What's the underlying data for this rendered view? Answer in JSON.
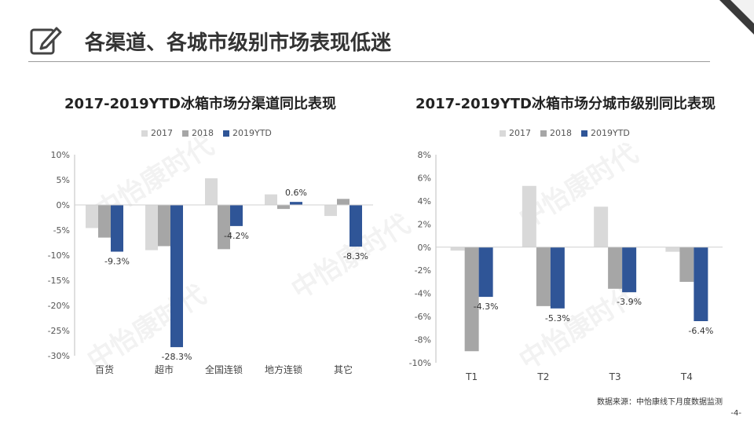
{
  "slide": {
    "title": "各渠道、各城市级别市场表现低迷",
    "source": "数据来源：中怡康线下月度数据监测",
    "page": "-4-",
    "watermark": "中怡康时代"
  },
  "colors": {
    "2017": "#d9d9d9",
    "2018": "#a6a6a6",
    "2019YTD": "#2f5597"
  },
  "chart_data": [
    {
      "type": "bar",
      "title": "2017-2019YTD冰箱市场分渠道同比表现",
      "categories": [
        "百货",
        "超市",
        "全国连锁",
        "地方连锁",
        "其它"
      ],
      "series": [
        {
          "name": "2017",
          "values": [
            -4.6,
            -9.0,
            5.3,
            2.1,
            -2.2
          ]
        },
        {
          "name": "2018",
          "values": [
            -6.5,
            -8.2,
            -8.8,
            -0.8,
            1.2
          ]
        },
        {
          "name": "2019YTD",
          "values": [
            -9.3,
            -28.3,
            -4.2,
            0.6,
            -8.3
          ]
        }
      ],
      "data_labels": [
        "-9.3%",
        "-28.3%",
        "-4.2%",
        "0.6%",
        "-8.3%"
      ],
      "yticks": [
        "10%",
        "5%",
        "0%",
        "-5%",
        "-10%",
        "-15%",
        "-20%",
        "-25%",
        "-30%"
      ],
      "ylim": [
        -30,
        10
      ],
      "legend": "top"
    },
    {
      "type": "bar",
      "title": "2017-2019YTD冰箱市场分城市级别同比表现",
      "categories": [
        "T1",
        "T2",
        "T3",
        "T4"
      ],
      "series": [
        {
          "name": "2017",
          "values": [
            -0.3,
            5.3,
            3.5,
            -0.4
          ]
        },
        {
          "name": "2018",
          "values": [
            -9.0,
            -5.1,
            -3.6,
            -3.0
          ]
        },
        {
          "name": "2019YTD",
          "values": [
            -4.3,
            -5.3,
            -3.9,
            -6.4
          ]
        }
      ],
      "data_labels": [
        "-4.3%",
        "-5.3%",
        "-3.9%",
        "-6.4%"
      ],
      "yticks": [
        "8%",
        "6%",
        "4%",
        "2%",
        "0%",
        "-2%",
        "-4%",
        "-6%",
        "-8%",
        "-10%"
      ],
      "ylim": [
        -10,
        8
      ],
      "legend": "top"
    }
  ]
}
